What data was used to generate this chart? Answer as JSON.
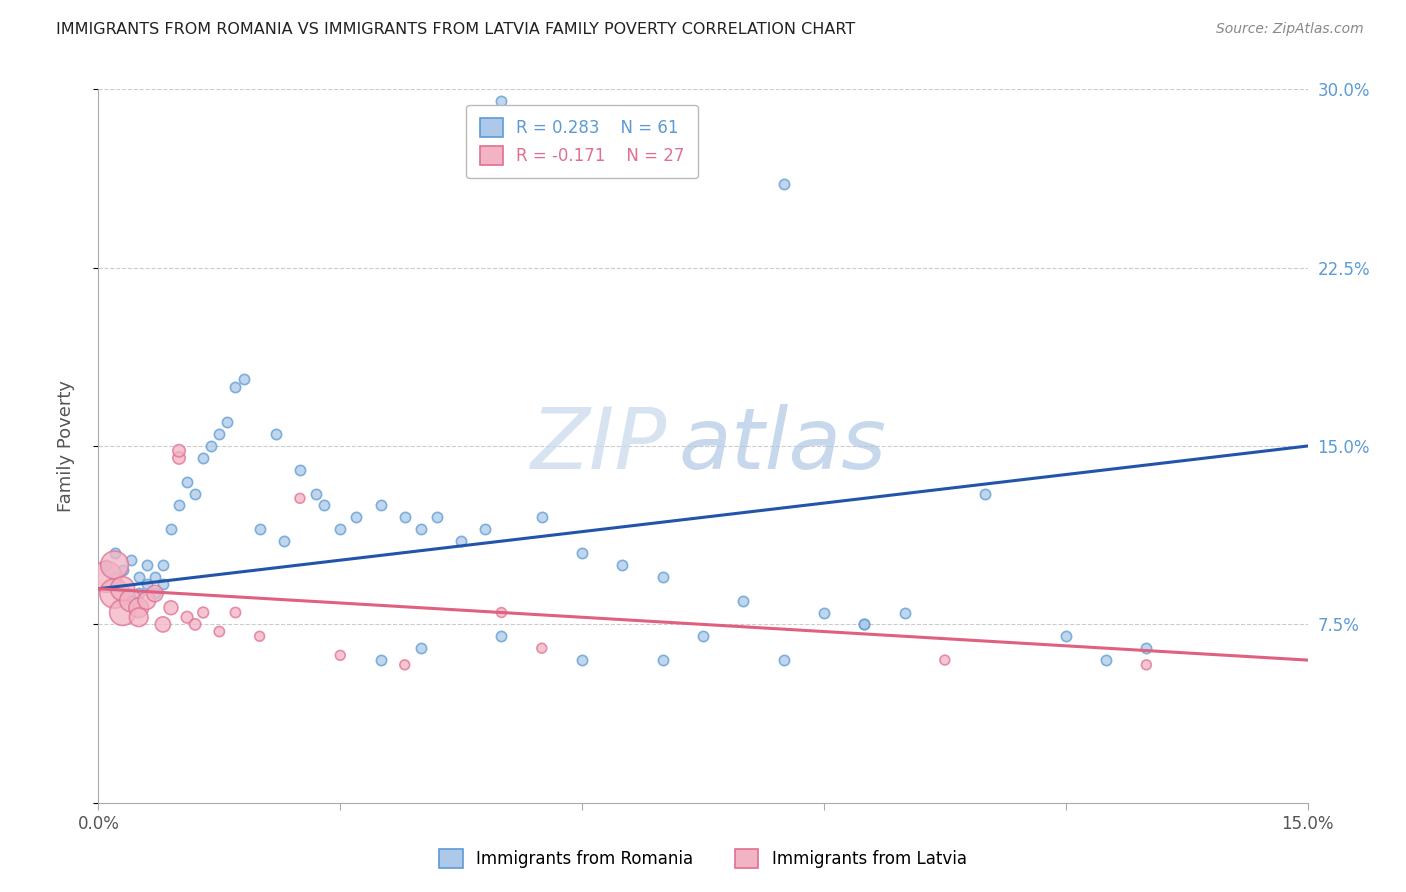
{
  "title": "IMMIGRANTS FROM ROMANIA VS IMMIGRANTS FROM LATVIA FAMILY POVERTY CORRELATION CHART",
  "source": "Source: ZipAtlas.com",
  "legend_romania_label": "Immigrants from Romania",
  "legend_latvia_label": "Immigrants from Latvia",
  "ylabel_label": "Family Poverty",
  "xlim": [
    0.0,
    0.15
  ],
  "ylim": [
    0.0,
    0.3
  ],
  "xticks": [
    0.0,
    0.03,
    0.06,
    0.09,
    0.12,
    0.15
  ],
  "yticks": [
    0.0,
    0.075,
    0.15,
    0.225,
    0.3
  ],
  "xtick_labels": [
    "0.0%",
    "",
    "",
    "",
    "",
    "15.0%"
  ],
  "ytick_labels_right": [
    "",
    "7.5%",
    "15.0%",
    "22.5%",
    "30.0%"
  ],
  "romania_color": "#adc8e8",
  "latvia_color": "#f2b3c4",
  "romania_edge": "#5b9bd5",
  "latvia_edge": "#e07090",
  "romania_R": "0.283",
  "romania_N": "61",
  "latvia_R": "-0.171",
  "latvia_N": "27",
  "romania_line_color": "#2255aa",
  "latvia_line_color": "#e06080",
  "romania_line_start_y": 0.09,
  "romania_line_end_y": 0.15,
  "latvia_line_start_y": 0.09,
  "latvia_line_end_y": 0.06,
  "watermark_zip": "ZIP",
  "watermark_atlas": "atlas",
  "romania_scatter_x": [
    0.001,
    0.002,
    0.002,
    0.003,
    0.003,
    0.004,
    0.004,
    0.005,
    0.005,
    0.006,
    0.006,
    0.007,
    0.007,
    0.008,
    0.008,
    0.009,
    0.01,
    0.011,
    0.012,
    0.013,
    0.014,
    0.015,
    0.016,
    0.017,
    0.018,
    0.02,
    0.022,
    0.023,
    0.025,
    0.027,
    0.028,
    0.03,
    0.032,
    0.035,
    0.038,
    0.04,
    0.042,
    0.045,
    0.048,
    0.05,
    0.055,
    0.06,
    0.065,
    0.07,
    0.075,
    0.08,
    0.085,
    0.09,
    0.095,
    0.1,
    0.11,
    0.12,
    0.125,
    0.13,
    0.035,
    0.04,
    0.05,
    0.06,
    0.07,
    0.085,
    0.095
  ],
  "romania_scatter_y": [
    0.1,
    0.095,
    0.105,
    0.09,
    0.098,
    0.085,
    0.102,
    0.088,
    0.095,
    0.092,
    0.1,
    0.088,
    0.095,
    0.092,
    0.1,
    0.115,
    0.125,
    0.135,
    0.13,
    0.145,
    0.15,
    0.155,
    0.16,
    0.175,
    0.178,
    0.115,
    0.155,
    0.11,
    0.14,
    0.13,
    0.125,
    0.115,
    0.12,
    0.125,
    0.12,
    0.115,
    0.12,
    0.11,
    0.115,
    0.295,
    0.12,
    0.105,
    0.1,
    0.095,
    0.07,
    0.085,
    0.26,
    0.08,
    0.075,
    0.08,
    0.13,
    0.07,
    0.06,
    0.065,
    0.06,
    0.065,
    0.07,
    0.06,
    0.06,
    0.06,
    0.075
  ],
  "romania_scatter_sizes": [
    50,
    50,
    50,
    50,
    50,
    50,
    50,
    50,
    50,
    50,
    50,
    50,
    50,
    50,
    50,
    50,
    50,
    50,
    50,
    50,
    50,
    50,
    50,
    50,
    50,
    50,
    50,
    50,
    50,
    50,
    50,
    50,
    50,
    50,
    50,
    50,
    50,
    50,
    50,
    50,
    50,
    50,
    50,
    50,
    50,
    50,
    50,
    50,
    50,
    50,
    50,
    50,
    50,
    50,
    50,
    50,
    50,
    50,
    50,
    50,
    50
  ],
  "latvia_scatter_x": [
    0.001,
    0.002,
    0.002,
    0.003,
    0.003,
    0.004,
    0.005,
    0.005,
    0.006,
    0.007,
    0.008,
    0.009,
    0.01,
    0.01,
    0.011,
    0.012,
    0.013,
    0.015,
    0.017,
    0.02,
    0.025,
    0.03,
    0.038,
    0.05,
    0.055,
    0.105,
    0.13
  ],
  "latvia_scatter_y": [
    0.095,
    0.088,
    0.1,
    0.08,
    0.09,
    0.085,
    0.082,
    0.078,
    0.085,
    0.088,
    0.075,
    0.082,
    0.145,
    0.148,
    0.078,
    0.075,
    0.08,
    0.072,
    0.08,
    0.07,
    0.128,
    0.062,
    0.058,
    0.08,
    0.065,
    0.06,
    0.058
  ],
  "latvia_scatter_sizes_large": [
    500,
    450,
    400,
    350,
    300,
    250,
    200,
    180,
    160,
    140,
    120,
    100,
    80,
    80,
    70,
    65,
    60,
    55,
    55,
    50,
    50,
    50,
    50,
    50,
    50,
    50,
    50
  ]
}
